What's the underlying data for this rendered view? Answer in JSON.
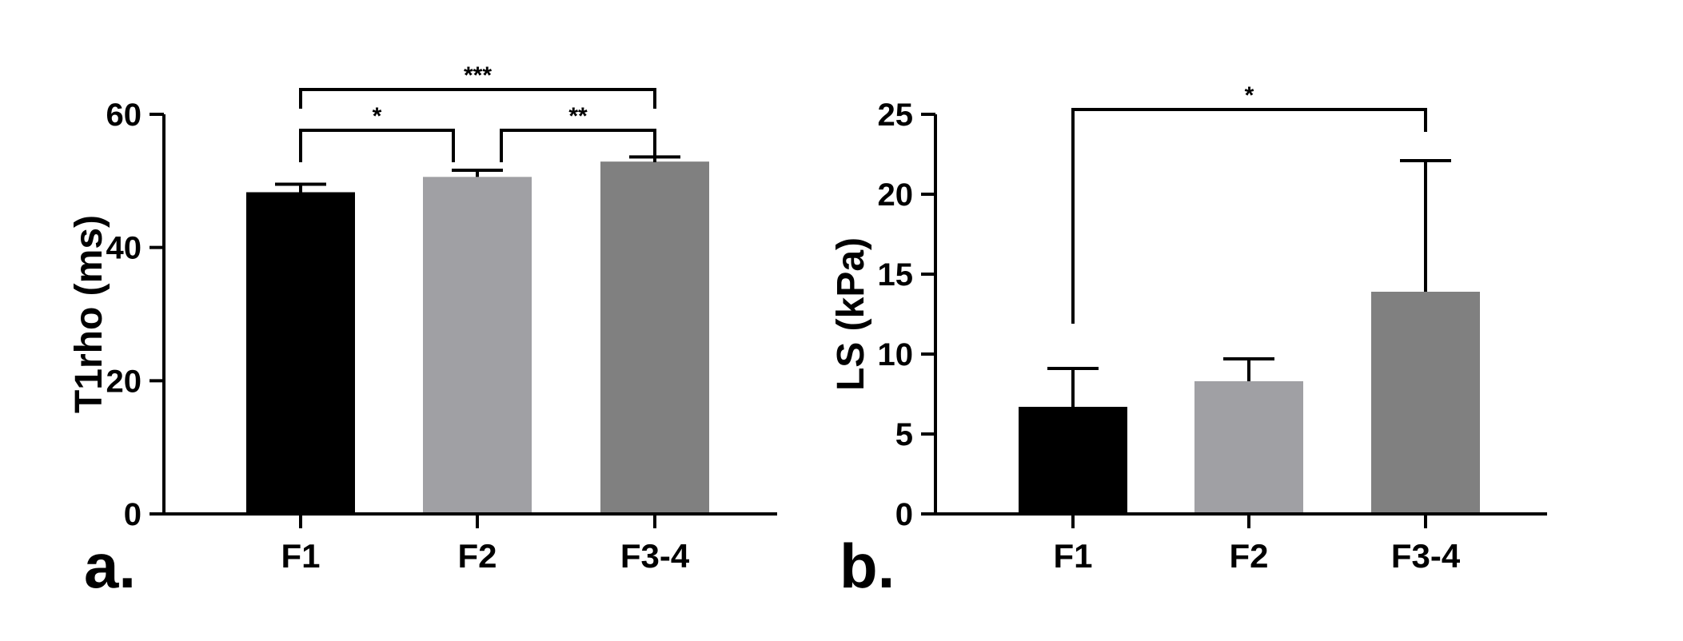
{
  "chart_data": [
    {
      "type": "bar",
      "panel_label": "a.",
      "ylabel": "T1rho (ms)",
      "xlabel": "",
      "categories": [
        "F1",
        "F2",
        "F3-4"
      ],
      "values": [
        48.3,
        50.6,
        52.9
      ],
      "errors": [
        1.2,
        1.0,
        0.7
      ],
      "colors": [
        "#000000",
        "#a0a0a4",
        "#808080"
      ],
      "ylim": [
        0,
        60
      ],
      "yticks": [
        "0",
        "20",
        "40",
        "60"
      ],
      "significance": [
        {
          "from": 0,
          "to": 1,
          "label": "*",
          "level": 0
        },
        {
          "from": 1,
          "to": 2,
          "label": "**",
          "level": 0
        },
        {
          "from": 0,
          "to": 2,
          "label": "***",
          "level": 1
        }
      ],
      "grid": false
    },
    {
      "type": "bar",
      "panel_label": "b.",
      "ylabel": "LS (kPa)",
      "xlabel": "",
      "categories": [
        "F1",
        "F2",
        "F3-4"
      ],
      "values": [
        6.7,
        8.3,
        13.9
      ],
      "errors": [
        2.4,
        1.4,
        8.2
      ],
      "colors": [
        "#000000",
        "#a0a0a4",
        "#808080"
      ],
      "ylim": [
        0,
        25
      ],
      "yticks": [
        "0",
        "5",
        "10",
        "15",
        "20",
        "25"
      ],
      "significance": [
        {
          "from": 0,
          "to": 2,
          "label": "*",
          "level": 0
        }
      ],
      "grid": false
    }
  ]
}
